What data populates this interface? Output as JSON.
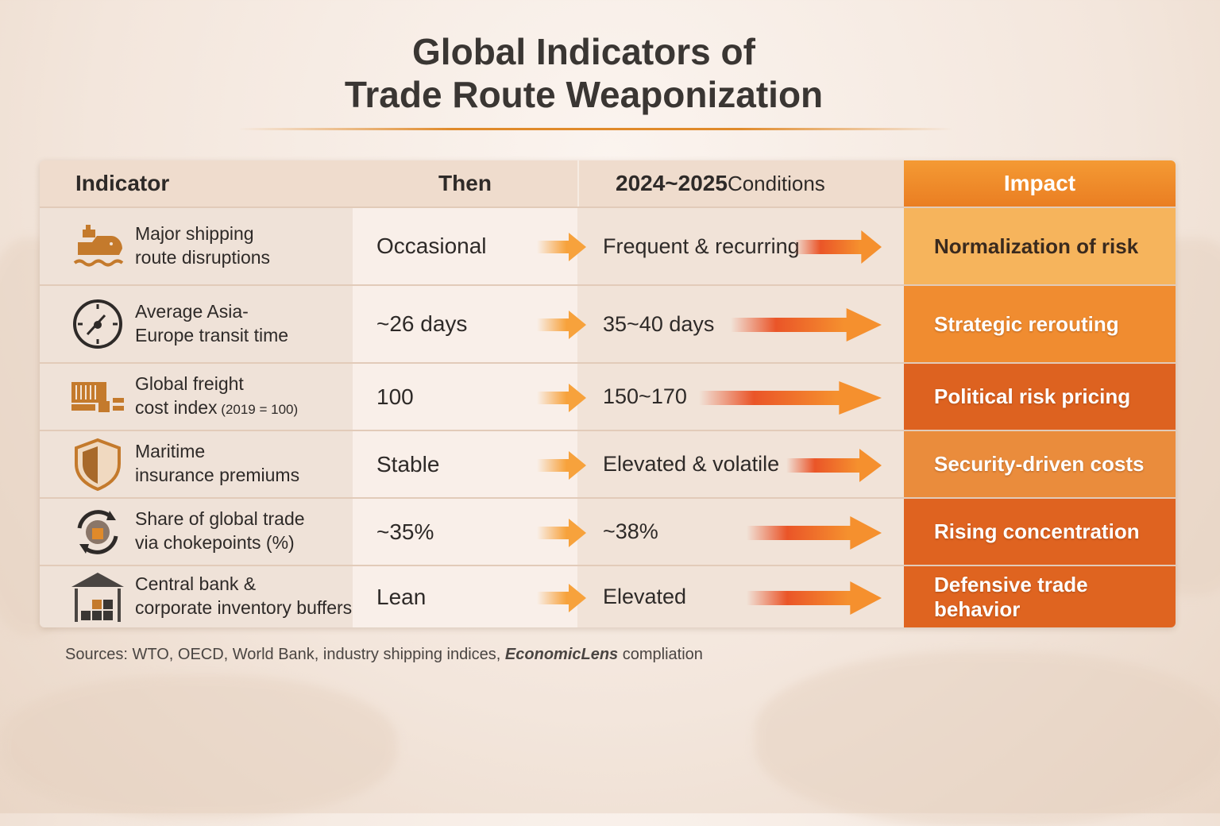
{
  "title_line1": "Global Indicators of",
  "title_line2": "Trade Route Weaponization",
  "chart_data": {
    "type": "table",
    "columns": [
      "Indicator",
      "Then",
      "2024~2025 Conditions",
      "Impact"
    ],
    "header_year": "2024~2025",
    "header_rest": " Conditions",
    "rows": [
      {
        "icon": "ship-icon",
        "ind1": "Major shipping",
        "ind2": "route disruptions",
        "ind2_small": "",
        "then": "Occasional",
        "now": "Frequent & recurring",
        "impact": "Normalization of risk",
        "impact_color": "#f6b45c"
      },
      {
        "icon": "clock-icon",
        "ind1": "Average Asia-",
        "ind2": "Europe transit time",
        "ind2_small": "",
        "then": "~26 days",
        "now": "35~40 days",
        "impact": "Strategic rerouting",
        "impact_color": "#f08c30"
      },
      {
        "icon": "containers-icon",
        "ind1": "Global freight",
        "ind2": "cost index",
        "ind2_small": " (2019 = 100)",
        "then": "100",
        "now": "150~170",
        "impact": "Political risk pricing",
        "impact_color": "#dd6220"
      },
      {
        "icon": "shield-icon",
        "ind1": "Maritime",
        "ind2": "insurance premiums",
        "ind2_small": "",
        "then": "Stable",
        "now": "Elevated & volatile",
        "impact": "Security-driven costs",
        "impact_color": "#ea8c3c"
      },
      {
        "icon": "globe-cycle-icon",
        "ind1": "Share of global trade",
        "ind2": "via chokepoints (%)",
        "ind2_small": "",
        "then": "~35%",
        "now": "~38%",
        "impact": "Rising concentration",
        "impact_color": "#df6320"
      },
      {
        "icon": "warehouse-icon",
        "ind1": "Central bank &",
        "ind2": "corporate inventory buffers",
        "ind2_small": "",
        "then": "Lean",
        "now": "Elevated",
        "impact": "Defensive trade behavior",
        "impact_color": "#df6420"
      }
    ]
  },
  "sources_prefix": "Sources: WTO, OECD, World Bank, industry shipping indices, ",
  "sources_brand": "EconomicLens",
  "sources_suffix": " compliation",
  "colors": {
    "accent": "#f08a2a",
    "deep": "#dd6220",
    "header_impact": "#f0902e"
  }
}
